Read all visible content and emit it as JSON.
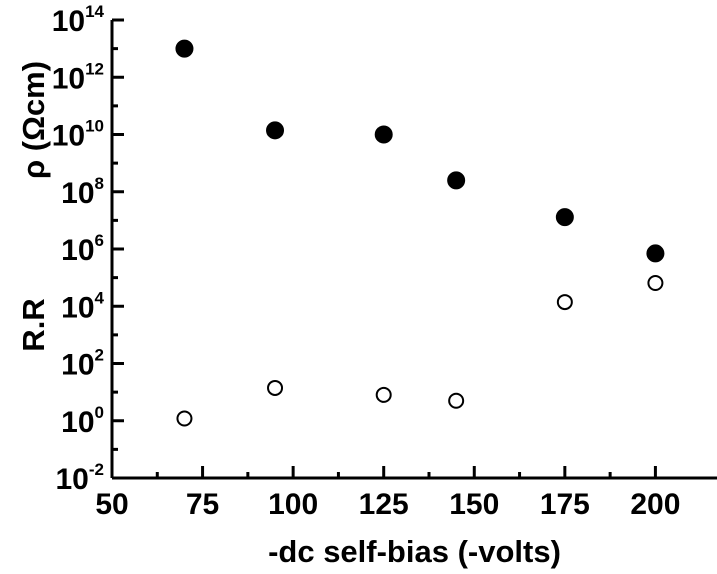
{
  "chart_data": {
    "type": "scatter",
    "xlabel": "-dc self-bias (-volts)",
    "ylabel_top": "ρ (Ωcm)",
    "ylabel_bottom": "R.R",
    "xlim": [
      50,
      217
    ],
    "ylim_log10": [
      -2,
      14
    ],
    "y_scale": "log",
    "grid": false,
    "legend": "none",
    "x_ticks": [
      {
        "value": 50,
        "label": "50"
      },
      {
        "value": 75,
        "label": "75"
      },
      {
        "value": 100,
        "label": "100"
      },
      {
        "value": 125,
        "label": "125"
      },
      {
        "value": 150,
        "label": "150"
      },
      {
        "value": 175,
        "label": "175"
      },
      {
        "value": 200,
        "label": "200"
      }
    ],
    "y_ticks": [
      {
        "exp": -2,
        "base": "10",
        "sup": "-2"
      },
      {
        "exp": 0,
        "base": "10",
        "sup": "0"
      },
      {
        "exp": 2,
        "base": "10",
        "sup": "2"
      },
      {
        "exp": 4,
        "base": "10",
        "sup": "4"
      },
      {
        "exp": 6,
        "base": "10",
        "sup": "6"
      },
      {
        "exp": 8,
        "base": "10",
        "sup": "8"
      },
      {
        "exp": 10,
        "base": "10",
        "sup": "10"
      },
      {
        "exp": 12,
        "base": "10",
        "sup": "12"
      },
      {
        "exp": 14,
        "base": "10",
        "sup": "14"
      }
    ],
    "series": [
      {
        "marker": "filled-circle",
        "color": "#000000",
        "x": [
          70,
          95,
          125,
          145,
          175,
          200
        ],
        "y": [
          10000000000000.0,
          14000000000.0,
          10000000000.0,
          250000000.0,
          13000000.0,
          700000.0
        ]
      },
      {
        "marker": "open-circle",
        "color": "#000000",
        "x": [
          70,
          95,
          125,
          145,
          175,
          200
        ],
        "y": [
          1.2,
          14,
          8,
          5,
          14000.0,
          65000.0
        ]
      }
    ]
  }
}
